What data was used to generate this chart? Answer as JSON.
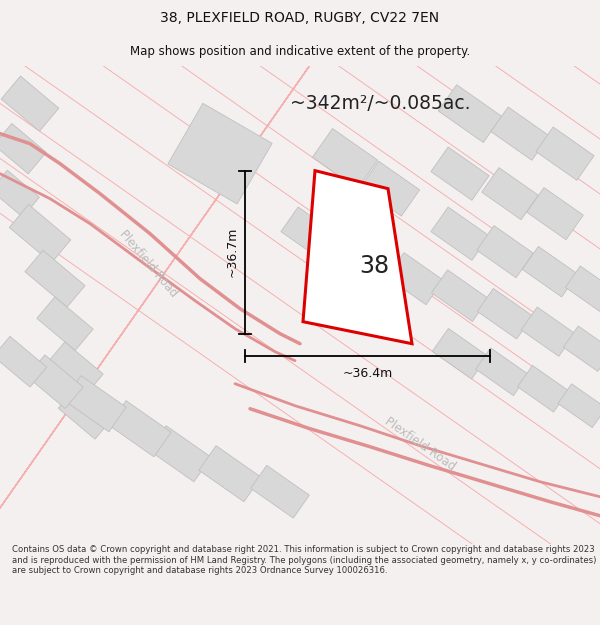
{
  "title_line1": "38, PLEXFIELD ROAD, RUGBY, CV22 7EN",
  "title_line2": "Map shows position and indicative extent of the property.",
  "area_text": "~342m²/~0.085ac.",
  "dim_height": "~36.7m",
  "dim_width": "~36.4m",
  "plot_number": "38",
  "footer_text": "Contains OS data © Crown copyright and database right 2021. This information is subject to Crown copyright and database rights 2023 and is reproduced with the permission of HM Land Registry. The polygons (including the associated geometry, namely x, y co-ordinates) are subject to Crown copyright and database rights 2023 Ordnance Survey 100026316.",
  "bg_color": "#f5f0f0",
  "map_bg": "#ffffff",
  "road_color": "#f5b0b0",
  "building_color": "#d8d8d8",
  "building_edge": "#c0c0c0",
  "plot_outline_color": "#dd0000",
  "dim_line_color": "#111111",
  "road_label_color": "#bbbbbb",
  "title_color": "#111111",
  "area_text_color": "#222222"
}
